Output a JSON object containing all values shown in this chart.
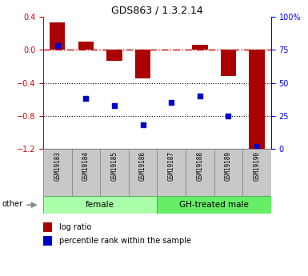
{
  "title": "GDS863 / 1.3.2.14",
  "samples": [
    "GSM19183",
    "GSM19184",
    "GSM19185",
    "GSM19186",
    "GSM19187",
    "GSM19188",
    "GSM19189",
    "GSM19190"
  ],
  "log_ratio": [
    0.33,
    0.1,
    -0.13,
    -0.35,
    0.0,
    0.055,
    -0.32,
    -1.27
  ],
  "percentile_rank": [
    78,
    38,
    33,
    18,
    35,
    40,
    25,
    2
  ],
  "ylim_left": [
    -1.2,
    0.4
  ],
  "ylim_right": [
    0,
    100
  ],
  "bar_color": "#AA0000",
  "scatter_color": "#0000CC",
  "hline_color": "#CC0000",
  "dotted_color": "#000000",
  "female_color": "#AAFFAA",
  "gh_color": "#66EE66",
  "label_bg": "#C8C8C8",
  "legend_log_ratio": "log ratio",
  "legend_percentile": "percentile rank within the sample",
  "left_yticks": [
    0.4,
    0.0,
    -0.4,
    -0.8,
    -1.2
  ],
  "right_yticks": [
    0,
    25,
    50,
    75,
    100
  ],
  "right_yticklabels": [
    "0",
    "25",
    "50",
    "75",
    "100%"
  ]
}
